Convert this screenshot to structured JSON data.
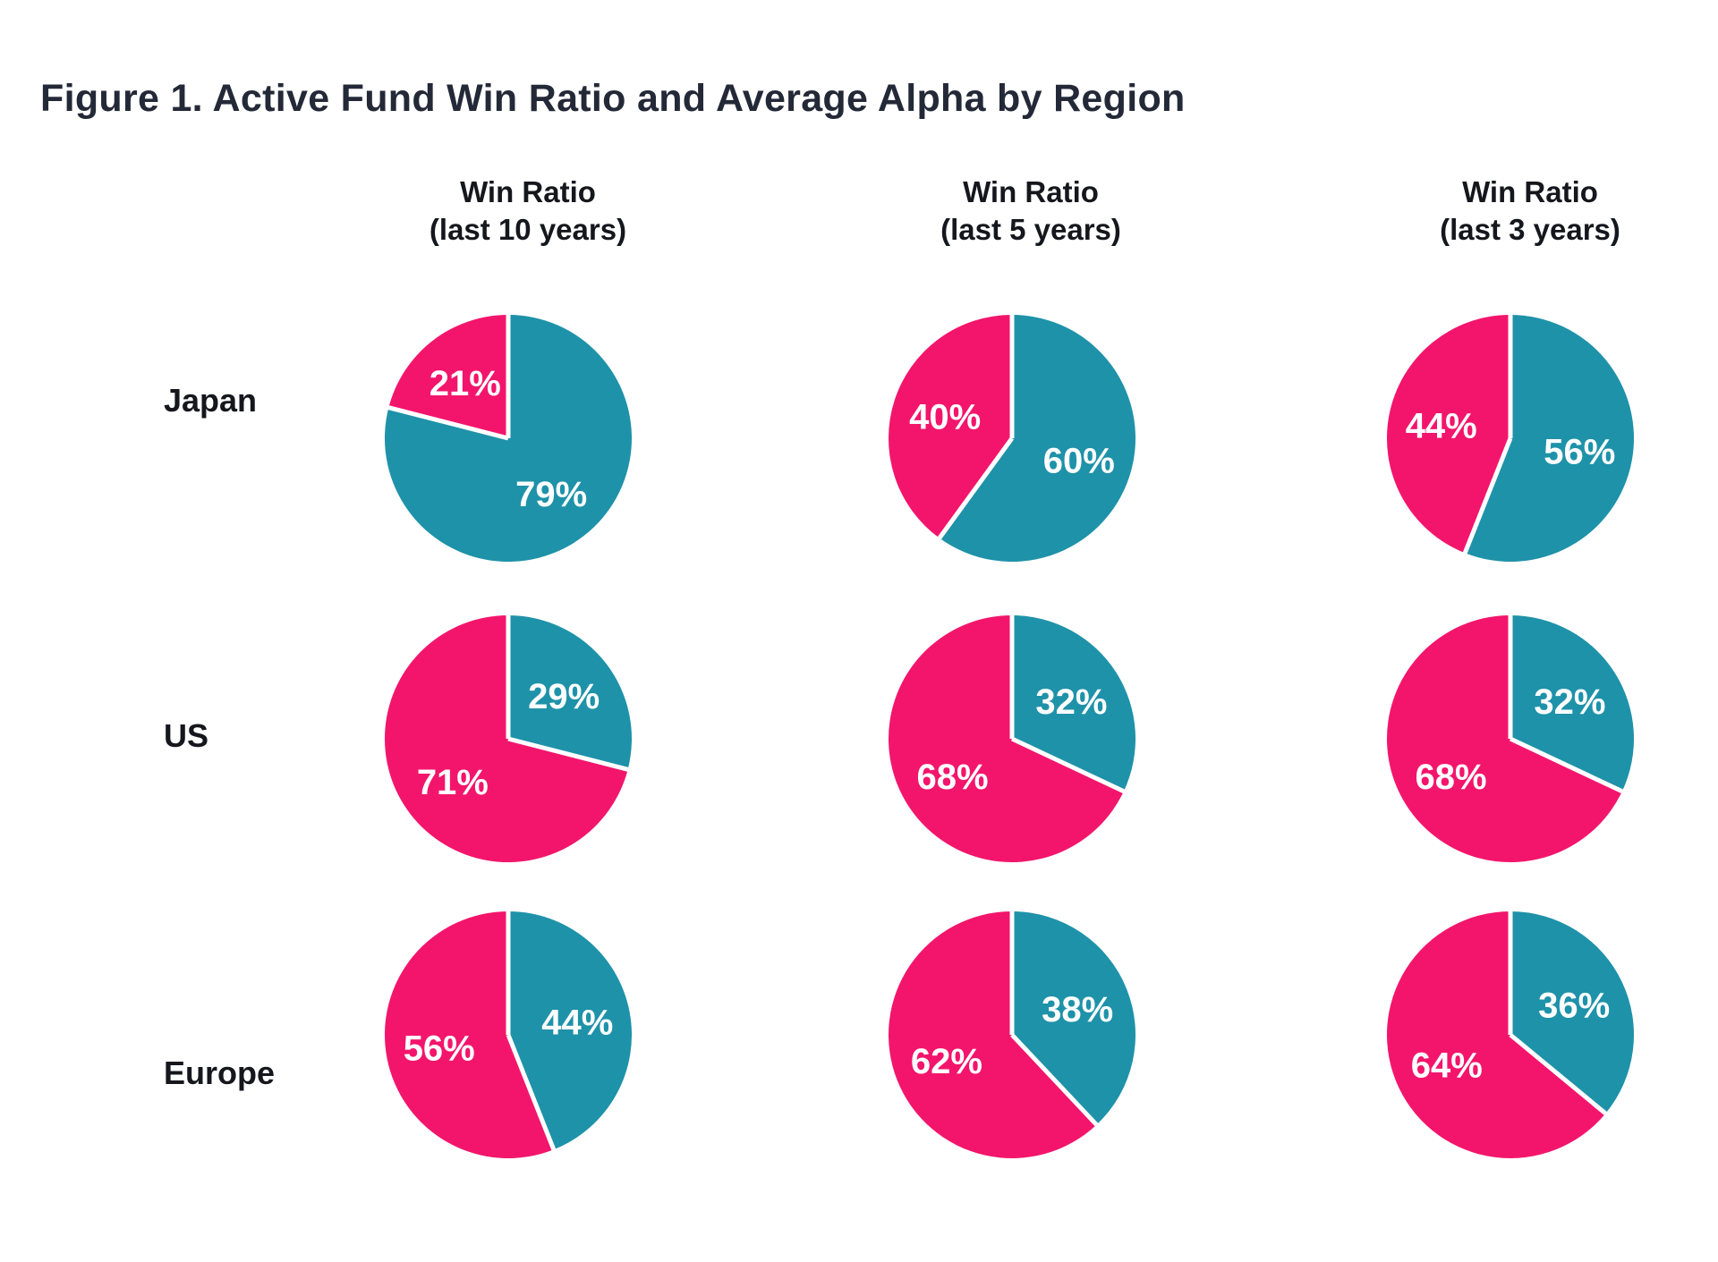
{
  "title": "Figure 1. Active Fund Win Ratio and Average Alpha by Region",
  "columns": [
    {
      "line1": "Win Ratio",
      "line2": "(last 10 years)"
    },
    {
      "line1": "Win Ratio",
      "line2": "(last 5 years)"
    },
    {
      "line1": "Win Ratio",
      "line2": "(last 3 years)"
    }
  ],
  "rows": [
    {
      "label": "Japan"
    },
    {
      "label": "US"
    },
    {
      "label": "Europe"
    }
  ],
  "chart_data": {
    "type": "pie",
    "title": "Figure 1. Active Fund Win Ratio and Average Alpha by Region",
    "columns": [
      "Win Ratio (last 10 years)",
      "Win Ratio (last 5 years)",
      "Win Ratio (last 3 years)"
    ],
    "rows": [
      "Japan",
      "US",
      "Europe"
    ],
    "slice_colors": {
      "teal": "#1E92A9",
      "pink": "#F3156C"
    },
    "label_color": "#FFFFFF",
    "slice_start": "teal slice starts at 12 o'clock and sweeps clockwise; pink fills the remainder",
    "pies": [
      {
        "region": "Japan",
        "period": "last 10 years",
        "teal": 79,
        "pink": 21
      },
      {
        "region": "Japan",
        "period": "last 5 years",
        "teal": 60,
        "pink": 40
      },
      {
        "region": "Japan",
        "period": "last 3 years",
        "teal": 56,
        "pink": 44
      },
      {
        "region": "US",
        "period": "last 10 years",
        "teal": 29,
        "pink": 71
      },
      {
        "region": "US",
        "period": "last 5 years",
        "teal": 32,
        "pink": 68
      },
      {
        "region": "US",
        "period": "last 3 years",
        "teal": 32,
        "pink": 68
      },
      {
        "region": "Europe",
        "period": "last 10 years",
        "teal": 44,
        "pink": 56
      },
      {
        "region": "Europe",
        "period": "last 5 years",
        "teal": 38,
        "pink": 62
      },
      {
        "region": "Europe",
        "period": "last 3 years",
        "teal": 36,
        "pink": 64
      }
    ]
  }
}
